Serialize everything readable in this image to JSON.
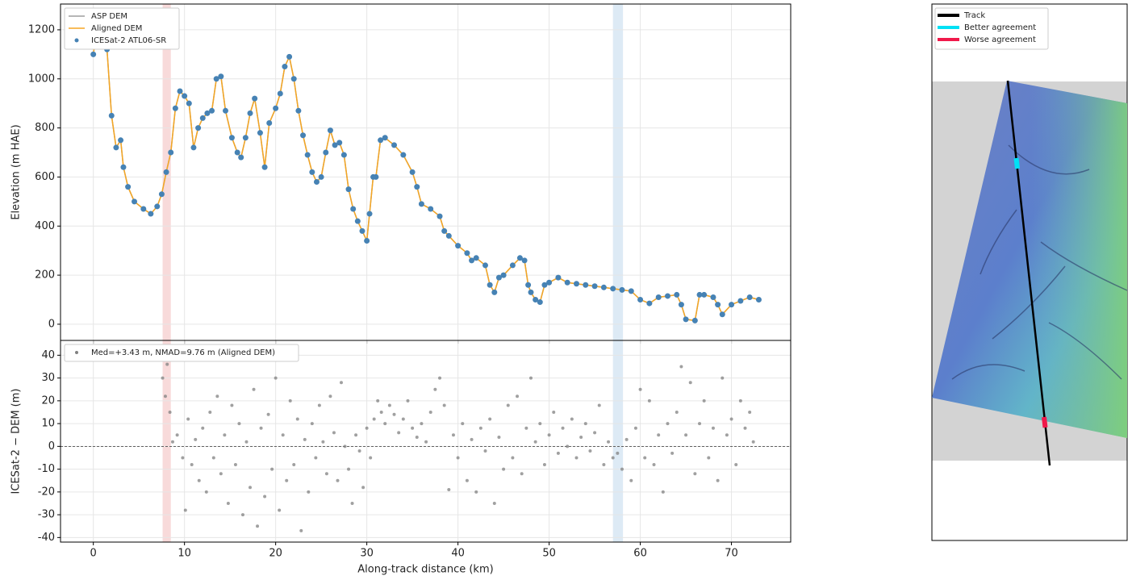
{
  "chart_data": [
    {
      "type": "line",
      "ylabel": "Elevation (m HAE)",
      "xlim": [
        -3.6,
        76.5
      ],
      "ylim": [
        -66,
        1305
      ],
      "xticks": [
        0,
        10,
        20,
        30,
        40,
        50,
        60,
        70
      ],
      "yticks": [
        0,
        200,
        400,
        600,
        800,
        1000,
        1200
      ],
      "grid": true,
      "legend": "upper left",
      "spans": [
        {
          "from": 7.6,
          "to": 8.5,
          "color": "#f4c2c2"
        },
        {
          "from": 57,
          "to": 58.1,
          "color": "#c6dcef"
        }
      ],
      "x": [
        0,
        0.3,
        0.6,
        1,
        1.5,
        2,
        2.5,
        3,
        3.3,
        3.8,
        4.5,
        5.5,
        6.3,
        7,
        7.5,
        8,
        8.5,
        9,
        9.5,
        10,
        10.5,
        11,
        11.5,
        12,
        12.5,
        13,
        13.5,
        14,
        14.5,
        15.2,
        15.8,
        16.2,
        16.7,
        17.2,
        17.7,
        18.3,
        18.8,
        19.3,
        20,
        20.5,
        21,
        21.5,
        22,
        22.5,
        23,
        23.5,
        24,
        24.5,
        25,
        25.5,
        26,
        26.5,
        27,
        27.5,
        28,
        28.5,
        29,
        29.5,
        30,
        30.3,
        30.7,
        31,
        31.5,
        32,
        33,
        34,
        35,
        35.5,
        36,
        37,
        38,
        38.5,
        39,
        40,
        41,
        41.5,
        42,
        43,
        43.5,
        44,
        44.5,
        45,
        46,
        46.8,
        47.3,
        47.7,
        48,
        48.5,
        49,
        49.5,
        50,
        51,
        52,
        53,
        54,
        55,
        56,
        57,
        58,
        59,
        60,
        61,
        62,
        63,
        64,
        64.5,
        65,
        66,
        66.5,
        67,
        68,
        68.5,
        69,
        70,
        71,
        72,
        73
      ],
      "series": [
        {
          "name": "ASP DEM",
          "color": "#9e9e9e",
          "style": "line",
          "values": [
            1100,
            1180,
            1200,
            1190,
            1120,
            850,
            720,
            750,
            640,
            560,
            500,
            470,
            450,
            480,
            530,
            620,
            700,
            880,
            950,
            930,
            900,
            720,
            800,
            840,
            860,
            870,
            1000,
            1010,
            870,
            760,
            700,
            680,
            760,
            860,
            920,
            780,
            640,
            820,
            880,
            940,
            1050,
            1090,
            1000,
            870,
            770,
            690,
            620,
            580,
            600,
            700,
            790,
            730,
            740,
            690,
            550,
            470,
            420,
            380,
            340,
            450,
            600,
            600,
            750,
            760,
            730,
            690,
            620,
            560,
            490,
            470,
            440,
            380,
            360,
            320,
            290,
            260,
            270,
            240,
            160,
            130,
            190,
            200,
            240,
            270,
            260,
            160,
            130,
            100,
            90,
            160,
            170,
            190,
            170,
            165,
            160,
            155,
            150,
            145,
            140,
            135,
            100,
            85,
            110,
            115,
            120,
            80,
            20,
            15,
            120,
            120,
            110,
            80,
            40,
            80,
            95,
            110,
            100
          ]
        },
        {
          "name": "Aligned DEM",
          "color": "#f5a623",
          "style": "line",
          "values": [
            1100,
            1180,
            1200,
            1190,
            1120,
            850,
            720,
            750,
            640,
            560,
            500,
            470,
            450,
            480,
            530,
            620,
            700,
            880,
            950,
            930,
            900,
            720,
            800,
            840,
            860,
            870,
            1000,
            1010,
            870,
            760,
            700,
            680,
            760,
            860,
            920,
            780,
            640,
            820,
            880,
            940,
            1050,
            1090,
            1000,
            870,
            770,
            690,
            620,
            580,
            600,
            700,
            790,
            730,
            740,
            690,
            550,
            470,
            420,
            380,
            340,
            450,
            600,
            600,
            750,
            760,
            730,
            690,
            620,
            560,
            490,
            470,
            440,
            380,
            360,
            320,
            290,
            260,
            270,
            240,
            160,
            130,
            190,
            200,
            240,
            270,
            260,
            160,
            130,
            100,
            90,
            160,
            170,
            190,
            170,
            165,
            160,
            155,
            150,
            145,
            140,
            135,
            100,
            85,
            110,
            115,
            120,
            80,
            20,
            15,
            120,
            120,
            110,
            80,
            40,
            80,
            95,
            110,
            100
          ]
        },
        {
          "name": "ICESat-2 ATL06-SR",
          "color": "#4682b4",
          "style": "dots",
          "values": [
            1100,
            1180,
            1200,
            1190,
            1120,
            850,
            720,
            750,
            640,
            560,
            500,
            470,
            450,
            480,
            530,
            620,
            700,
            880,
            950,
            930,
            900,
            720,
            800,
            840,
            860,
            870,
            1000,
            1010,
            870,
            760,
            700,
            680,
            760,
            860,
            920,
            780,
            640,
            820,
            880,
            940,
            1050,
            1090,
            1000,
            870,
            770,
            690,
            620,
            580,
            600,
            700,
            790,
            730,
            740,
            690,
            550,
            470,
            420,
            380,
            340,
            450,
            600,
            600,
            750,
            760,
            730,
            690,
            620,
            560,
            490,
            470,
            440,
            380,
            360,
            320,
            290,
            260,
            270,
            240,
            160,
            130,
            190,
            200,
            240,
            270,
            260,
            160,
            130,
            100,
            90,
            160,
            170,
            190,
            170,
            165,
            160,
            155,
            150,
            145,
            140,
            135,
            100,
            85,
            110,
            115,
            120,
            80,
            20,
            15,
            120,
            120,
            110,
            80,
            40,
            80,
            95,
            110,
            100
          ]
        }
      ]
    },
    {
      "type": "scatter",
      "xlabel": "Along-track distance (km)",
      "ylabel": "ICESat-2 − DEM (m)",
      "xlim": [
        -3.6,
        76.5
      ],
      "ylim": [
        -42,
        46.5
      ],
      "xticks": [
        0,
        10,
        20,
        30,
        40,
        50,
        60,
        70
      ],
      "yticks": [
        -40,
        -30,
        -20,
        -10,
        0,
        10,
        20,
        30,
        40
      ],
      "grid": true,
      "legend": "upper left",
      "hline": 0,
      "spans": [
        {
          "from": 7.6,
          "to": 8.5,
          "color": "#f4c2c2"
        },
        {
          "from": 57,
          "to": 58.1,
          "color": "#c6dcef"
        }
      ],
      "x": [
        7.6,
        7.9,
        8.1,
        8.4,
        8.7,
        9.2,
        9.5,
        9.8,
        10.1,
        10.4,
        10.8,
        11.2,
        11.6,
        12,
        12.4,
        12.8,
        13.2,
        13.6,
        14,
        14.4,
        14.8,
        15.2,
        15.6,
        16,
        16.4,
        16.8,
        17.2,
        17.6,
        18,
        18.4,
        18.8,
        19.2,
        19.6,
        20,
        20.4,
        20.8,
        21.2,
        21.6,
        22,
        22.4,
        22.8,
        23.2,
        23.6,
        24,
        24.4,
        24.8,
        25.2,
        25.6,
        26,
        26.4,
        26.8,
        27.2,
        27.6,
        28,
        28.4,
        28.8,
        29.2,
        29.6,
        30,
        30.4,
        30.8,
        31.2,
        31.6,
        32,
        32.5,
        33,
        33.5,
        34,
        34.5,
        35,
        35.5,
        36,
        36.5,
        37,
        37.5,
        38,
        38.5,
        39,
        39.5,
        40,
        40.5,
        41,
        41.5,
        42,
        42.5,
        43,
        43.5,
        44,
        44.5,
        45,
        45.5,
        46,
        46.5,
        47,
        47.5,
        48,
        48.5,
        49,
        49.5,
        50,
        50.5,
        51,
        51.5,
        52,
        52.5,
        53,
        53.5,
        54,
        54.5,
        55,
        55.5,
        56,
        56.5,
        57,
        57.5,
        58,
        58.5,
        59,
        59.5,
        60,
        60.5,
        61,
        61.5,
        62,
        62.5,
        63,
        63.5,
        64,
        64.5,
        65,
        65.5,
        66,
        66.5,
        67,
        67.5,
        68,
        68.5,
        69,
        69.5,
        70,
        70.5,
        71,
        71.5,
        72,
        72.4
      ],
      "series": [
        {
          "name": "Med=+3.43 m, NMAD=9.76 m (Aligned DEM)",
          "color": "#808080",
          "style": "dots",
          "values": [
            30,
            22,
            36,
            15,
            2,
            5,
            38,
            -5,
            -28,
            12,
            -8,
            3,
            -15,
            8,
            -20,
            15,
            -5,
            22,
            -12,
            5,
            -25,
            18,
            -8,
            10,
            -30,
            2,
            -18,
            25,
            -35,
            8,
            -22,
            14,
            -10,
            30,
            -28,
            5,
            -15,
            20,
            -8,
            12,
            -37,
            3,
            -20,
            10,
            -5,
            18,
            2,
            -12,
            22,
            6,
            -15,
            28,
            0,
            -10,
            -25,
            5,
            -2,
            -18,
            8,
            -5,
            12,
            20,
            15,
            10,
            18,
            14,
            6,
            12,
            20,
            8,
            4,
            10,
            2,
            15,
            25,
            30,
            18,
            -19,
            5,
            -5,
            10,
            -15,
            3,
            -20,
            8,
            -2,
            12,
            -25,
            4,
            -10,
            18,
            -5,
            22,
            -12,
            8,
            30,
            2,
            10,
            -8,
            5,
            15,
            -3,
            8,
            0,
            12,
            -5,
            4,
            10,
            -2,
            6,
            18,
            -8,
            2,
            -5,
            -3,
            -10,
            3,
            -15,
            8,
            25,
            -5,
            20,
            -8,
            5,
            -20,
            10,
            -3,
            15,
            35,
            5,
            28,
            -12,
            10,
            20,
            -5,
            8,
            -15,
            30,
            5,
            12,
            -8,
            20,
            8,
            15,
            2
          ]
        }
      ]
    }
  ],
  "map_panel": {
    "legend": [
      {
        "name": "Track",
        "color": "#000000"
      },
      {
        "name": "Better agreement",
        "color": "#00e1f5"
      },
      {
        "name": "Worse agreement",
        "color": "#f0194a"
      }
    ]
  }
}
